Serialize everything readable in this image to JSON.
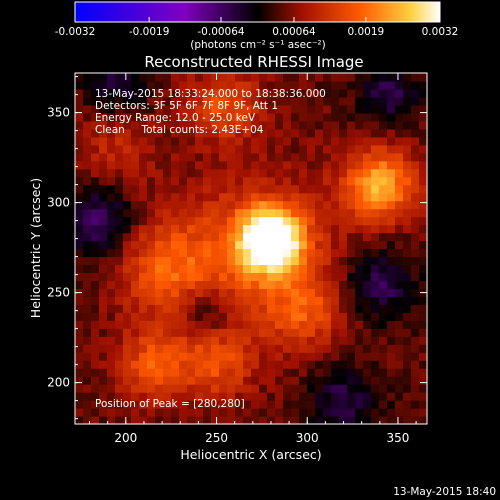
{
  "chart_data": {
    "type": "heatmap",
    "title": "Reconstructed RHESSI Image",
    "xlabel": "Heliocentric X (arcsec)",
    "ylabel": "Heliocentric Y (arcsec)",
    "xlim": [
      172,
      366
    ],
    "ylim": [
      177,
      372
    ],
    "xticks": [
      "200",
      "250",
      "300",
      "350"
    ],
    "yticks": [
      "200",
      "250",
      "300",
      "350"
    ],
    "colorbar": {
      "range": [
        -0.0032,
        0.0032
      ],
      "ticks": [
        "-0.0032",
        "-0.0019",
        "-0.00064",
        "0.00064",
        "0.0019",
        "0.0032"
      ],
      "unit_label": "(photons cm⁻² s⁻¹ asec⁻²)"
    },
    "annotations": [
      "13-May-2015 18:33:24.000 to 18:38:36.000",
      "Detectors: 3F 5F 6F 7F 8F 9F, Att 1",
      "Energy Range: 12.0 - 25.0 keV",
      "Clean     Total counts: 2.43E+04"
    ],
    "peak_label": "Position of Peak = [280,280]",
    "peak": [
      280,
      280
    ],
    "sources": [
      {
        "x": 280,
        "y": 280,
        "amp": 0.003,
        "sigma": 12
      },
      {
        "x": 270,
        "y": 270,
        "amp": 0.0012,
        "sigma": 30
      },
      {
        "x": 340,
        "y": 310,
        "amp": 0.002,
        "sigma": 14
      },
      {
        "x": 220,
        "y": 265,
        "amp": 0.0011,
        "sigma": 18
      },
      {
        "x": 215,
        "y": 210,
        "amp": 0.0012,
        "sigma": 14
      },
      {
        "x": 250,
        "y": 210,
        "amp": 0.001,
        "sigma": 14
      },
      {
        "x": 300,
        "y": 240,
        "amp": 0.0009,
        "sigma": 14
      },
      {
        "x": 255,
        "y": 355,
        "amp": 0.0011,
        "sigma": 14
      },
      {
        "x": 195,
        "y": 330,
        "amp": 0.0006,
        "sigma": 16
      },
      {
        "x": 245,
        "y": 240,
        "amp": -0.0008,
        "sigma": 10
      },
      {
        "x": 185,
        "y": 290,
        "amp": -0.0012,
        "sigma": 14
      },
      {
        "x": 340,
        "y": 255,
        "amp": -0.001,
        "sigma": 14
      },
      {
        "x": 345,
        "y": 360,
        "amp": -0.0009,
        "sigma": 12
      },
      {
        "x": 320,
        "y": 190,
        "amp": -0.0009,
        "sigma": 14
      },
      {
        "x": 195,
        "y": 365,
        "amp": -0.0008,
        "sigma": 12
      }
    ]
  },
  "footer_timestamp": "13-May-2015 18:40"
}
